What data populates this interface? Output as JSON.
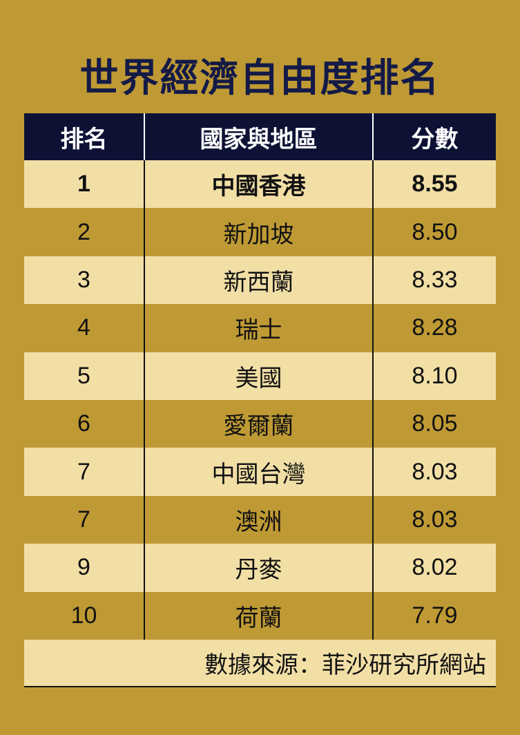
{
  "title": "世界經濟自由度排名",
  "colors": {
    "background": "#BF9A34",
    "header": "#0D1235",
    "row_light": "#F2DFA6",
    "title": "#141a47"
  },
  "chart_data": {
    "type": "table",
    "columns": [
      "排名",
      "國家與地區",
      "分數"
    ],
    "rows": [
      {
        "rank": "1",
        "name": "中國香港",
        "score": "8.55"
      },
      {
        "rank": "2",
        "name": "新加坡",
        "score": "8.50"
      },
      {
        "rank": "3",
        "name": "新西蘭",
        "score": "8.33"
      },
      {
        "rank": "4",
        "name": "瑞士",
        "score": "8.28"
      },
      {
        "rank": "5",
        "name": "美國",
        "score": "8.10"
      },
      {
        "rank": "6",
        "name": "愛爾蘭",
        "score": "8.05"
      },
      {
        "rank": "7",
        "name": "中國台灣",
        "score": "8.03"
      },
      {
        "rank": "7",
        "name": "澳洲",
        "score": "8.03"
      },
      {
        "rank": "9",
        "name": "丹麥",
        "score": "8.02"
      },
      {
        "rank": "10",
        "name": "荷蘭",
        "score": "7.79"
      }
    ],
    "highlighted_row": 0
  },
  "footer": "數據來源：菲沙研究所網站"
}
